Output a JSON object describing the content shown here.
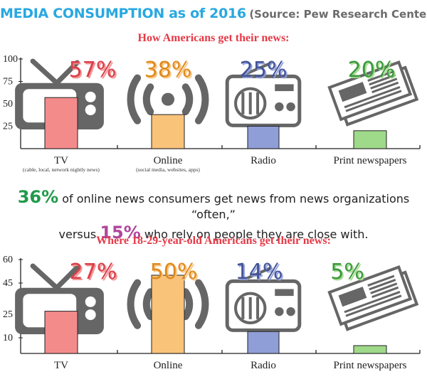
{
  "header": {
    "title": "MEDIA CONSUMPTION as of 2016",
    "source": "(Source: Pew Research Center)"
  },
  "colors": {
    "title": "#29a8e0",
    "subtitle": "#e63946",
    "tv": "#f48b8b",
    "online": "#f9c37a",
    "radio": "#8f9ed6",
    "print": "#9fd98a",
    "icon": "#666666",
    "green_stat": "#1f9a4a",
    "purple_stat": "#b0479c"
  },
  "stat": {
    "value1": "36%",
    "text1": " of online news consumers get news from news organizations “often,”",
    "text2a": "versus ",
    "value2": "15%",
    "text2b": " who rely on people they are close with."
  },
  "chart_data": [
    {
      "type": "bar",
      "title": "How Americans get their news:",
      "categories": [
        "TV",
        "Online",
        "Radio",
        "Print newspapers"
      ],
      "category_notes": [
        "(cable, local, network nightly news)",
        "(social media, websites, apps)",
        "",
        ""
      ],
      "values": [
        57,
        38,
        25,
        20
      ],
      "value_labels": [
        "57%",
        "38%",
        "25%",
        "20%"
      ],
      "icons": [
        "tv-icon",
        "wifi-signal-icon",
        "radio-icon",
        "newspaper-icon"
      ],
      "yticks": [
        25,
        50,
        75,
        100
      ],
      "ylim": [
        0,
        100
      ],
      "grid": false,
      "legend": "none"
    },
    {
      "type": "bar",
      "title": "Where 18-29-year-old Americans get their news:",
      "categories": [
        "TV",
        "Online",
        "Radio",
        "Print newspapers"
      ],
      "category_notes": [
        "",
        "",
        "",
        ""
      ],
      "values": [
        27,
        50,
        14,
        5
      ],
      "value_labels": [
        "27%",
        "50%",
        "14%",
        "5%"
      ],
      "icons": [
        "tv-icon",
        "wifi-signal-icon",
        "radio-icon",
        "newspaper-icon"
      ],
      "yticks": [
        10,
        25,
        45,
        60
      ],
      "ylim": [
        0,
        60
      ],
      "grid": false,
      "legend": "none"
    }
  ]
}
